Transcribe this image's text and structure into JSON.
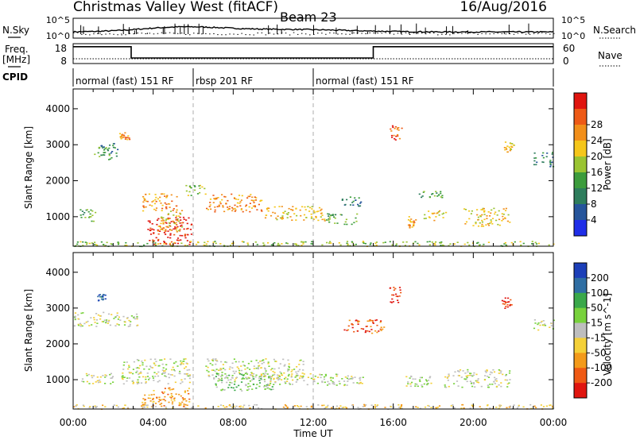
{
  "header": {
    "title": "Christmas Valley West (fitACF)",
    "beam": "Beam 23",
    "date": "16/Aug/2016"
  },
  "top_panels": {
    "nsky_label": "N.Sky",
    "nsky_ticks": [
      "10^5",
      "10^0"
    ],
    "nsearch_label": "N.Search",
    "nsearch_ticks": [
      "10^5",
      "10^0"
    ],
    "freq_label": "Freq.",
    "freq_unit": "[MHz]",
    "freq_ticks": [
      "18",
      "8"
    ],
    "nave_label": "Nave",
    "nave_ticks": [
      "60",
      "0"
    ],
    "cpid_label": "CPID",
    "cpid_segments": [
      {
        "label": "normal (fast) 151 RF",
        "start_h": 0,
        "end_h": 6
      },
      {
        "label": "rbsp 201 RF",
        "start_h": 6,
        "end_h": 12
      },
      {
        "label": "normal (fast) 151 RF",
        "start_h": 12,
        "end_h": 24
      }
    ],
    "freq_steps": [
      {
        "start_h": 0,
        "end_h": 2.9,
        "freq_mhz": 16.5
      },
      {
        "start_h": 2.9,
        "end_h": 15,
        "freq_mhz": 10.8
      },
      {
        "start_h": 15,
        "end_h": 24,
        "freq_mhz": 16.5
      }
    ]
  },
  "x_axis": {
    "label": "Time UT",
    "ticks": [
      "00:00",
      "04:00",
      "08:00",
      "12:00",
      "16:00",
      "20:00",
      "00:00"
    ]
  },
  "chart_data": [
    {
      "type": "heatmap",
      "ylabel": "Slant Range [km]",
      "xlabel": "",
      "xlim_hours": [
        0,
        24
      ],
      "ylim_km": [
        180,
        4550
      ],
      "yticks": [
        "1000",
        "2000",
        "3000",
        "4000"
      ],
      "colorbar": {
        "label": "Power [dB]",
        "ticks": [
          "4",
          "8",
          "12",
          "16",
          "20",
          "24",
          "28"
        ],
        "colors": [
          "#1f2ee8",
          "#26559b",
          "#2e7d5c",
          "#3c9c3c",
          "#9ac432",
          "#f5c61a",
          "#f28f1a",
          "#ee5a16",
          "#e0150f"
        ]
      },
      "echo_regions": [
        {
          "t": [
            0.3,
            1.1
          ],
          "r": [
            850,
            1250
          ],
          "level": 3
        },
        {
          "t": [
            1.0,
            1.9
          ],
          "r": [
            2600,
            2950
          ],
          "level": 3
        },
        {
          "t": [
            1.3,
            2.2
          ],
          "r": [
            2700,
            3050
          ],
          "level": 2
        },
        {
          "t": [
            2.3,
            2.8
          ],
          "r": [
            3150,
            3350
          ],
          "level": 6
        },
        {
          "t": [
            3.4,
            5.2
          ],
          "r": [
            1150,
            1650
          ],
          "level": 6
        },
        {
          "t": [
            3.7,
            5.9
          ],
          "r": [
            230,
            1000
          ],
          "level": 8
        },
        {
          "t": [
            4.2,
            5.5
          ],
          "r": [
            600,
            1200
          ],
          "level": 5
        },
        {
          "t": [
            5.6,
            6.6
          ],
          "r": [
            1600,
            1900
          ],
          "level": 4
        },
        {
          "t": [
            6.6,
            9.5
          ],
          "r": [
            1150,
            1650
          ],
          "level": 6
        },
        {
          "t": [
            9.5,
            12.6
          ],
          "r": [
            900,
            1300
          ],
          "level": 5
        },
        {
          "t": [
            12.6,
            14.2
          ],
          "r": [
            800,
            1100
          ],
          "level": 3
        },
        {
          "t": [
            13.4,
            14.4
          ],
          "r": [
            1300,
            1600
          ],
          "level": 2
        },
        {
          "t": [
            15.8,
            16.4
          ],
          "r": [
            3150,
            3550
          ],
          "level": 7
        },
        {
          "t": [
            16.7,
            17.2
          ],
          "r": [
            700,
            1050
          ],
          "level": 6
        },
        {
          "t": [
            17.5,
            18.6
          ],
          "r": [
            900,
            1200
          ],
          "level": 5
        },
        {
          "t": [
            17.2,
            18.5
          ],
          "r": [
            1550,
            1750
          ],
          "level": 3
        },
        {
          "t": [
            19.5,
            21.8
          ],
          "r": [
            750,
            1250
          ],
          "level": 5
        },
        {
          "t": [
            21.5,
            22.0
          ],
          "r": [
            2800,
            3100
          ],
          "level": 5
        },
        {
          "t": [
            23.0,
            24.0
          ],
          "r": [
            2400,
            2800
          ],
          "level": 2
        },
        {
          "t": [
            0.0,
            24.0
          ],
          "r": [
            190,
            330
          ],
          "level": 4
        }
      ]
    },
    {
      "type": "heatmap",
      "ylabel": "Slant Range [km]",
      "xlabel": "Time UT",
      "xlim_hours": [
        0,
        24
      ],
      "ylim_km": [
        180,
        4550
      ],
      "yticks": [
        "1000",
        "2000",
        "3000",
        "4000"
      ],
      "colorbar": {
        "label": "Velocity [m s^-1]",
        "ticks": [
          "200",
          "100",
          "50",
          "15",
          "-15",
          "-50",
          "-100",
          "-200"
        ],
        "colors": [
          "#1c3fb8",
          "#2f6ea3",
          "#3aa84a",
          "#78d23c",
          "#bebebe",
          "#f4d038",
          "#f39a1a",
          "#ef5a14",
          "#e0150f"
        ]
      },
      "echo_regions": [
        {
          "t": [
            0.0,
            3.2
          ],
          "r": [
            2500,
            2900
          ],
          "level": 4
        },
        {
          "t": [
            0.3,
            2.0
          ],
          "r": [
            900,
            1200
          ],
          "level": 4
        },
        {
          "t": [
            1.2,
            1.6
          ],
          "r": [
            3200,
            3400
          ],
          "level": 1
        },
        {
          "t": [
            2.4,
            5.8
          ],
          "r": [
            900,
            1600
          ],
          "level": 4
        },
        {
          "t": [
            3.4,
            5.8
          ],
          "r": [
            250,
            800
          ],
          "level": 6
        },
        {
          "t": [
            6.6,
            11.5
          ],
          "r": [
            1000,
            1600
          ],
          "level": 4
        },
        {
          "t": [
            7.0,
            10.0
          ],
          "r": [
            700,
            1200
          ],
          "level": 3
        },
        {
          "t": [
            9.5,
            14.5
          ],
          "r": [
            850,
            1200
          ],
          "level": 4
        },
        {
          "t": [
            15.7,
            16.4
          ],
          "r": [
            3150,
            3600
          ],
          "level": 8
        },
        {
          "t": [
            13.5,
            15.5
          ],
          "r": [
            2300,
            2700
          ],
          "level": 7
        },
        {
          "t": [
            16.5,
            18.0
          ],
          "r": [
            800,
            1150
          ],
          "level": 4
        },
        {
          "t": [
            18.5,
            21.8
          ],
          "r": [
            800,
            1300
          ],
          "level": 4
        },
        {
          "t": [
            21.4,
            21.9
          ],
          "r": [
            3000,
            3300
          ],
          "level": 8
        },
        {
          "t": [
            23.0,
            24.0
          ],
          "r": [
            2400,
            2700
          ],
          "level": 4
        },
        {
          "t": [
            0.0,
            24.0
          ],
          "r": [
            190,
            320
          ],
          "level": 5
        }
      ]
    }
  ]
}
